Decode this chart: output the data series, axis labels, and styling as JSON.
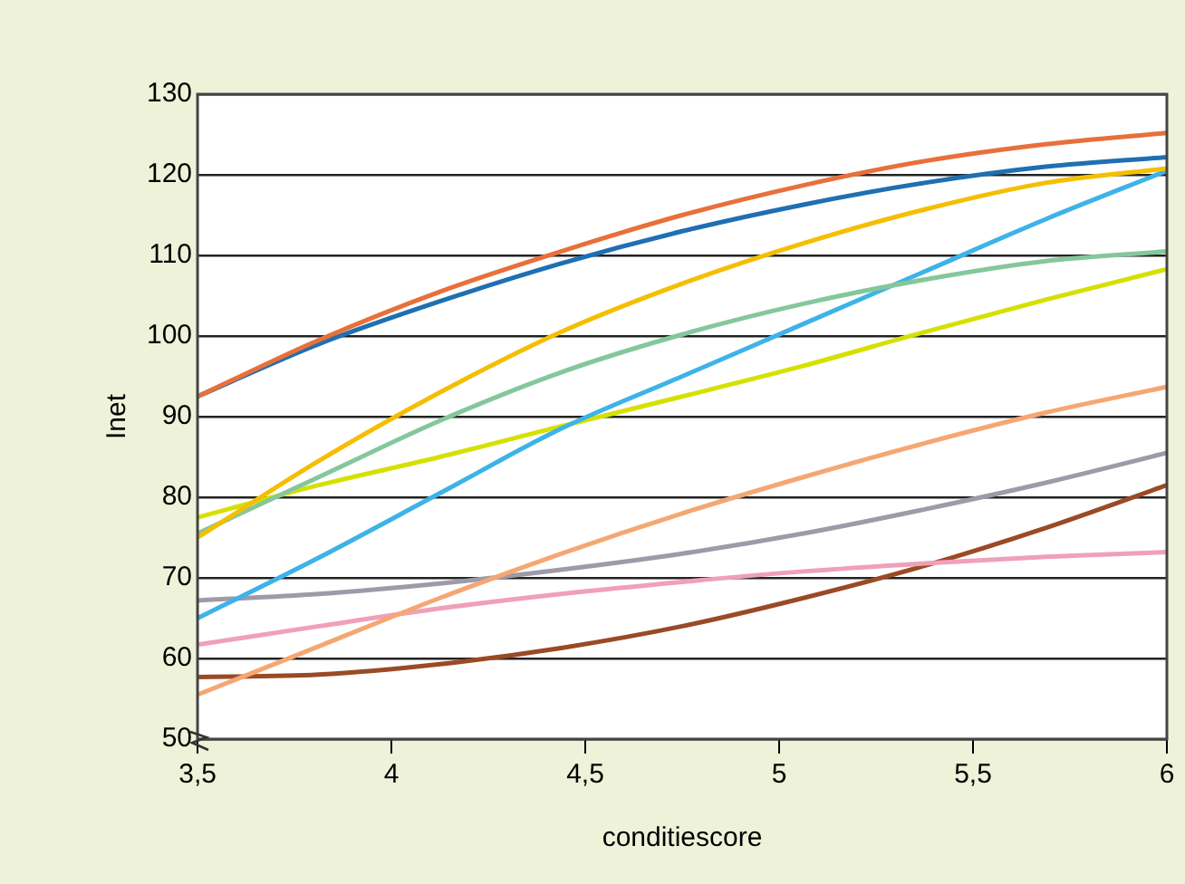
{
  "chart_data": {
    "type": "line",
    "xlabel": "conditiescore",
    "ylabel": "Inet",
    "x": [
      3.5,
      3.8125,
      4.125,
      4.4375,
      4.75,
      5.0625,
      5.375,
      5.6875,
      6
    ],
    "xlim": [
      3.5,
      6
    ],
    "xticks": [
      {
        "value": 3.5,
        "label": "3,5"
      },
      4,
      {
        "value": 4.5,
        "label": "4,5"
      },
      5,
      {
        "value": 5.5,
        "label": "5,5"
      },
      6
    ],
    "ylim": [
      50,
      130
    ],
    "yticks": [
      50,
      60,
      70,
      80,
      90,
      100,
      110,
      120,
      130
    ],
    "grid": "y",
    "legend": false,
    "marker": "none",
    "line_style": "solid",
    "series": [
      {
        "color": "#e8703a",
        "values": [
          92.5,
          99.5,
          105.5,
          110.5,
          115,
          118.7,
          121.7,
          123.8,
          125.2
        ]
      },
      {
        "color": "#1f6fb2",
        "values": [
          92.5,
          99,
          104.3,
          109,
          113,
          116.3,
          119,
          121,
          122.2
        ]
      },
      {
        "color": "#f5be00",
        "values": [
          75,
          84.5,
          93,
          100.5,
          106.5,
          111.5,
          115.7,
          119,
          120.8
        ]
      },
      {
        "color": "#84c79c",
        "values": [
          75.5,
          82.5,
          89.5,
          95.5,
          100.2,
          104,
          107,
          109.3,
          110.5
        ]
      },
      {
        "color": "#3db3e8",
        "values": [
          65,
          72.5,
          80.5,
          88.5,
          95,
          101.5,
          108,
          114.5,
          120.5
        ]
      },
      {
        "color": "#d6e000",
        "values": [
          77.5,
          81.5,
          85,
          88.8,
          92.5,
          96.3,
          100.5,
          104.5,
          108.3
        ]
      },
      {
        "color": "#f5a773",
        "values": [
          55.5,
          61.5,
          67.5,
          73,
          78,
          82.5,
          86.7,
          90.5,
          93.7
        ]
      },
      {
        "color": "#9e9aa8",
        "values": [
          67.2,
          68,
          69.3,
          71,
          73,
          75.5,
          78.5,
          81.8,
          85.5
        ]
      },
      {
        "color": "#f0a0b8",
        "values": [
          61.7,
          64,
          66.2,
          68,
          69.5,
          70.8,
          71.8,
          72.6,
          73.2
        ]
      },
      {
        "color": "#9a4a26",
        "values": [
          57.7,
          58,
          59.3,
          61.3,
          64,
          67.5,
          71.5,
          76.2,
          81.5
        ]
      }
    ]
  }
}
